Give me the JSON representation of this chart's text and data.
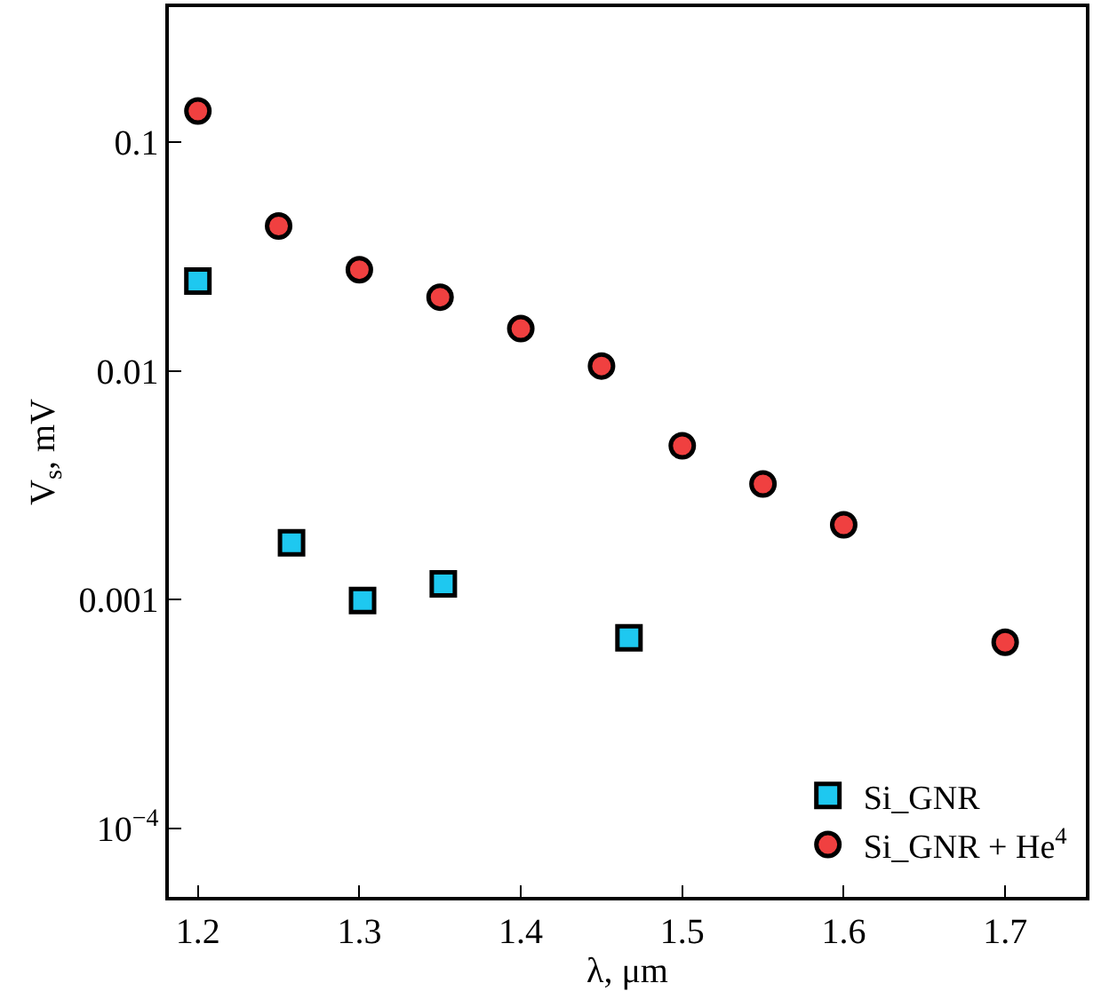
{
  "chart_data": {
    "type": "scatter",
    "xlabel": "λ, μm",
    "ylabel": "V$_{s}$, mV",
    "log": "y",
    "legend": "bottom right",
    "xlim": [
      1.182,
      1.75
    ],
    "xticks": [
      1.2,
      1.3,
      1.4,
      1.5,
      1.6,
      1.7
    ],
    "ylim": [
      5e-05,
      0.39
    ],
    "yticks": [
      {
        "value": 0.0001,
        "label": "10$^{−4}$"
      },
      0.001,
      0.01,
      0.1
    ],
    "series": [
      {
        "name": "Si_GNR",
        "color": "#1ec8f0",
        "marker": "square",
        "x": [
          1.2,
          1.258,
          1.302,
          1.352,
          1.467
        ],
        "values": [
          0.0247,
          0.00177,
          0.00099,
          0.00117,
          0.00068
        ]
      },
      {
        "name": "Si_GNR + He$^{4}$",
        "color": "#f04040",
        "marker": "circle",
        "x": [
          1.2,
          1.25,
          1.3,
          1.35,
          1.4,
          1.45,
          1.5,
          1.55,
          1.6,
          1.7
        ],
        "values": [
          0.137,
          0.043,
          0.0277,
          0.021,
          0.0153,
          0.0105,
          0.0047,
          0.0032,
          0.00212,
          0.00065
        ]
      }
    ]
  }
}
